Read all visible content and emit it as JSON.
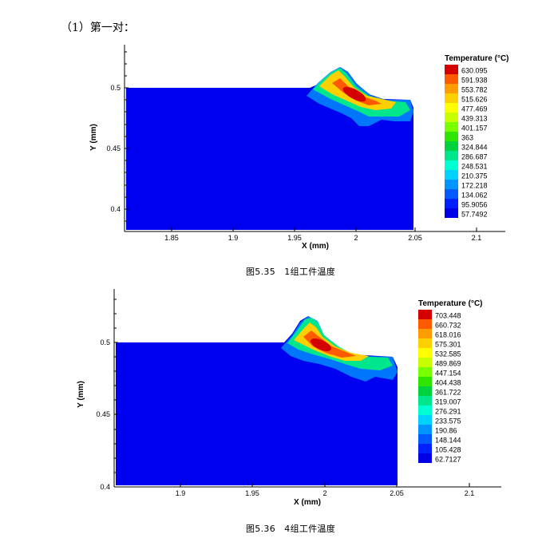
{
  "heading": "（1）第一对：",
  "figures": [
    {
      "caption": "图5.35　1组工件温度",
      "colorbar_title": "Temperature (°C)",
      "colorbar_values": [
        "630.095",
        "591.938",
        "553.782",
        "515.626",
        "477.469",
        "439.313",
        "401.157",
        "363",
        "324.844",
        "286.687",
        "248.531",
        "210.375",
        "172.218",
        "134.062",
        "95.9056",
        "57.7492"
      ],
      "x_ticks": [
        "1.85",
        "1.9",
        "1.95",
        "2",
        "2.05",
        "2.1"
      ],
      "y_ticks": [
        "0.5",
        "0.45",
        "0.4"
      ],
      "xlabel": "X (mm)",
      "ylabel": "Y (mm)"
    },
    {
      "caption": "图5.36　4组工件温度",
      "colorbar_title": "Temperature (°C)",
      "colorbar_values": [
        "703.448",
        "660.732",
        "618.016",
        "575.301",
        "532.585",
        "489.869",
        "447.154",
        "404.438",
        "361.722",
        "319.007",
        "276.291",
        "233.575",
        "190.86",
        "148.144",
        "105.428",
        "62.7127"
      ],
      "x_ticks": [
        "1.9",
        "1.95",
        "2",
        "2.05",
        "2.1"
      ],
      "y_ticks": [
        "0.5",
        "0.45",
        "0.4"
      ],
      "xlabel": "X (mm)",
      "ylabel": "Y (mm)"
    }
  ],
  "chart_data": [
    {
      "type": "heatmap",
      "xlabel": "X (mm)",
      "ylabel": "Y (mm)",
      "x_ticks": [
        1.85,
        1.9,
        1.95,
        2,
        2.05,
        2.1
      ],
      "y_ticks": [
        0.4,
        0.45,
        0.5
      ],
      "xlim": [
        1.81,
        2.12
      ],
      "ylim": [
        0.38,
        0.535
      ],
      "legend_position": "right",
      "colorbar_title": "Temperature (°C)",
      "colorbar_levels": [
        630.095,
        591.938,
        553.782,
        515.626,
        477.469,
        439.313,
        401.157,
        363,
        324.844,
        286.687,
        248.531,
        210.375,
        172.218,
        134.062,
        95.9056,
        57.7492
      ]
    },
    {
      "type": "heatmap",
      "xlabel": "X (mm)",
      "ylabel": "Y (mm)",
      "x_ticks": [
        1.9,
        1.95,
        2,
        2.05,
        2.1
      ],
      "y_ticks": [
        0.4,
        0.45,
        0.5
      ],
      "xlim": [
        1.86,
        2.12
      ],
      "ylim": [
        0.4,
        0.53
      ],
      "legend_position": "right",
      "colorbar_title": "Temperature (°C)",
      "colorbar_levels": [
        703.448,
        660.732,
        618.016,
        575.301,
        532.585,
        489.869,
        447.154,
        404.438,
        361.722,
        319.007,
        276.291,
        233.575,
        190.86,
        148.144,
        105.428,
        62.7127
      ]
    }
  ],
  "palette": [
    "#d40000",
    "#ff5a00",
    "#ff9c00",
    "#ffd000",
    "#ffff00",
    "#c8ff00",
    "#78ff00",
    "#2ee600",
    "#00d23c",
    "#00e68c",
    "#00ffd2",
    "#00d2ff",
    "#0094ff",
    "#005aff",
    "#0020ff",
    "#0000e6"
  ]
}
